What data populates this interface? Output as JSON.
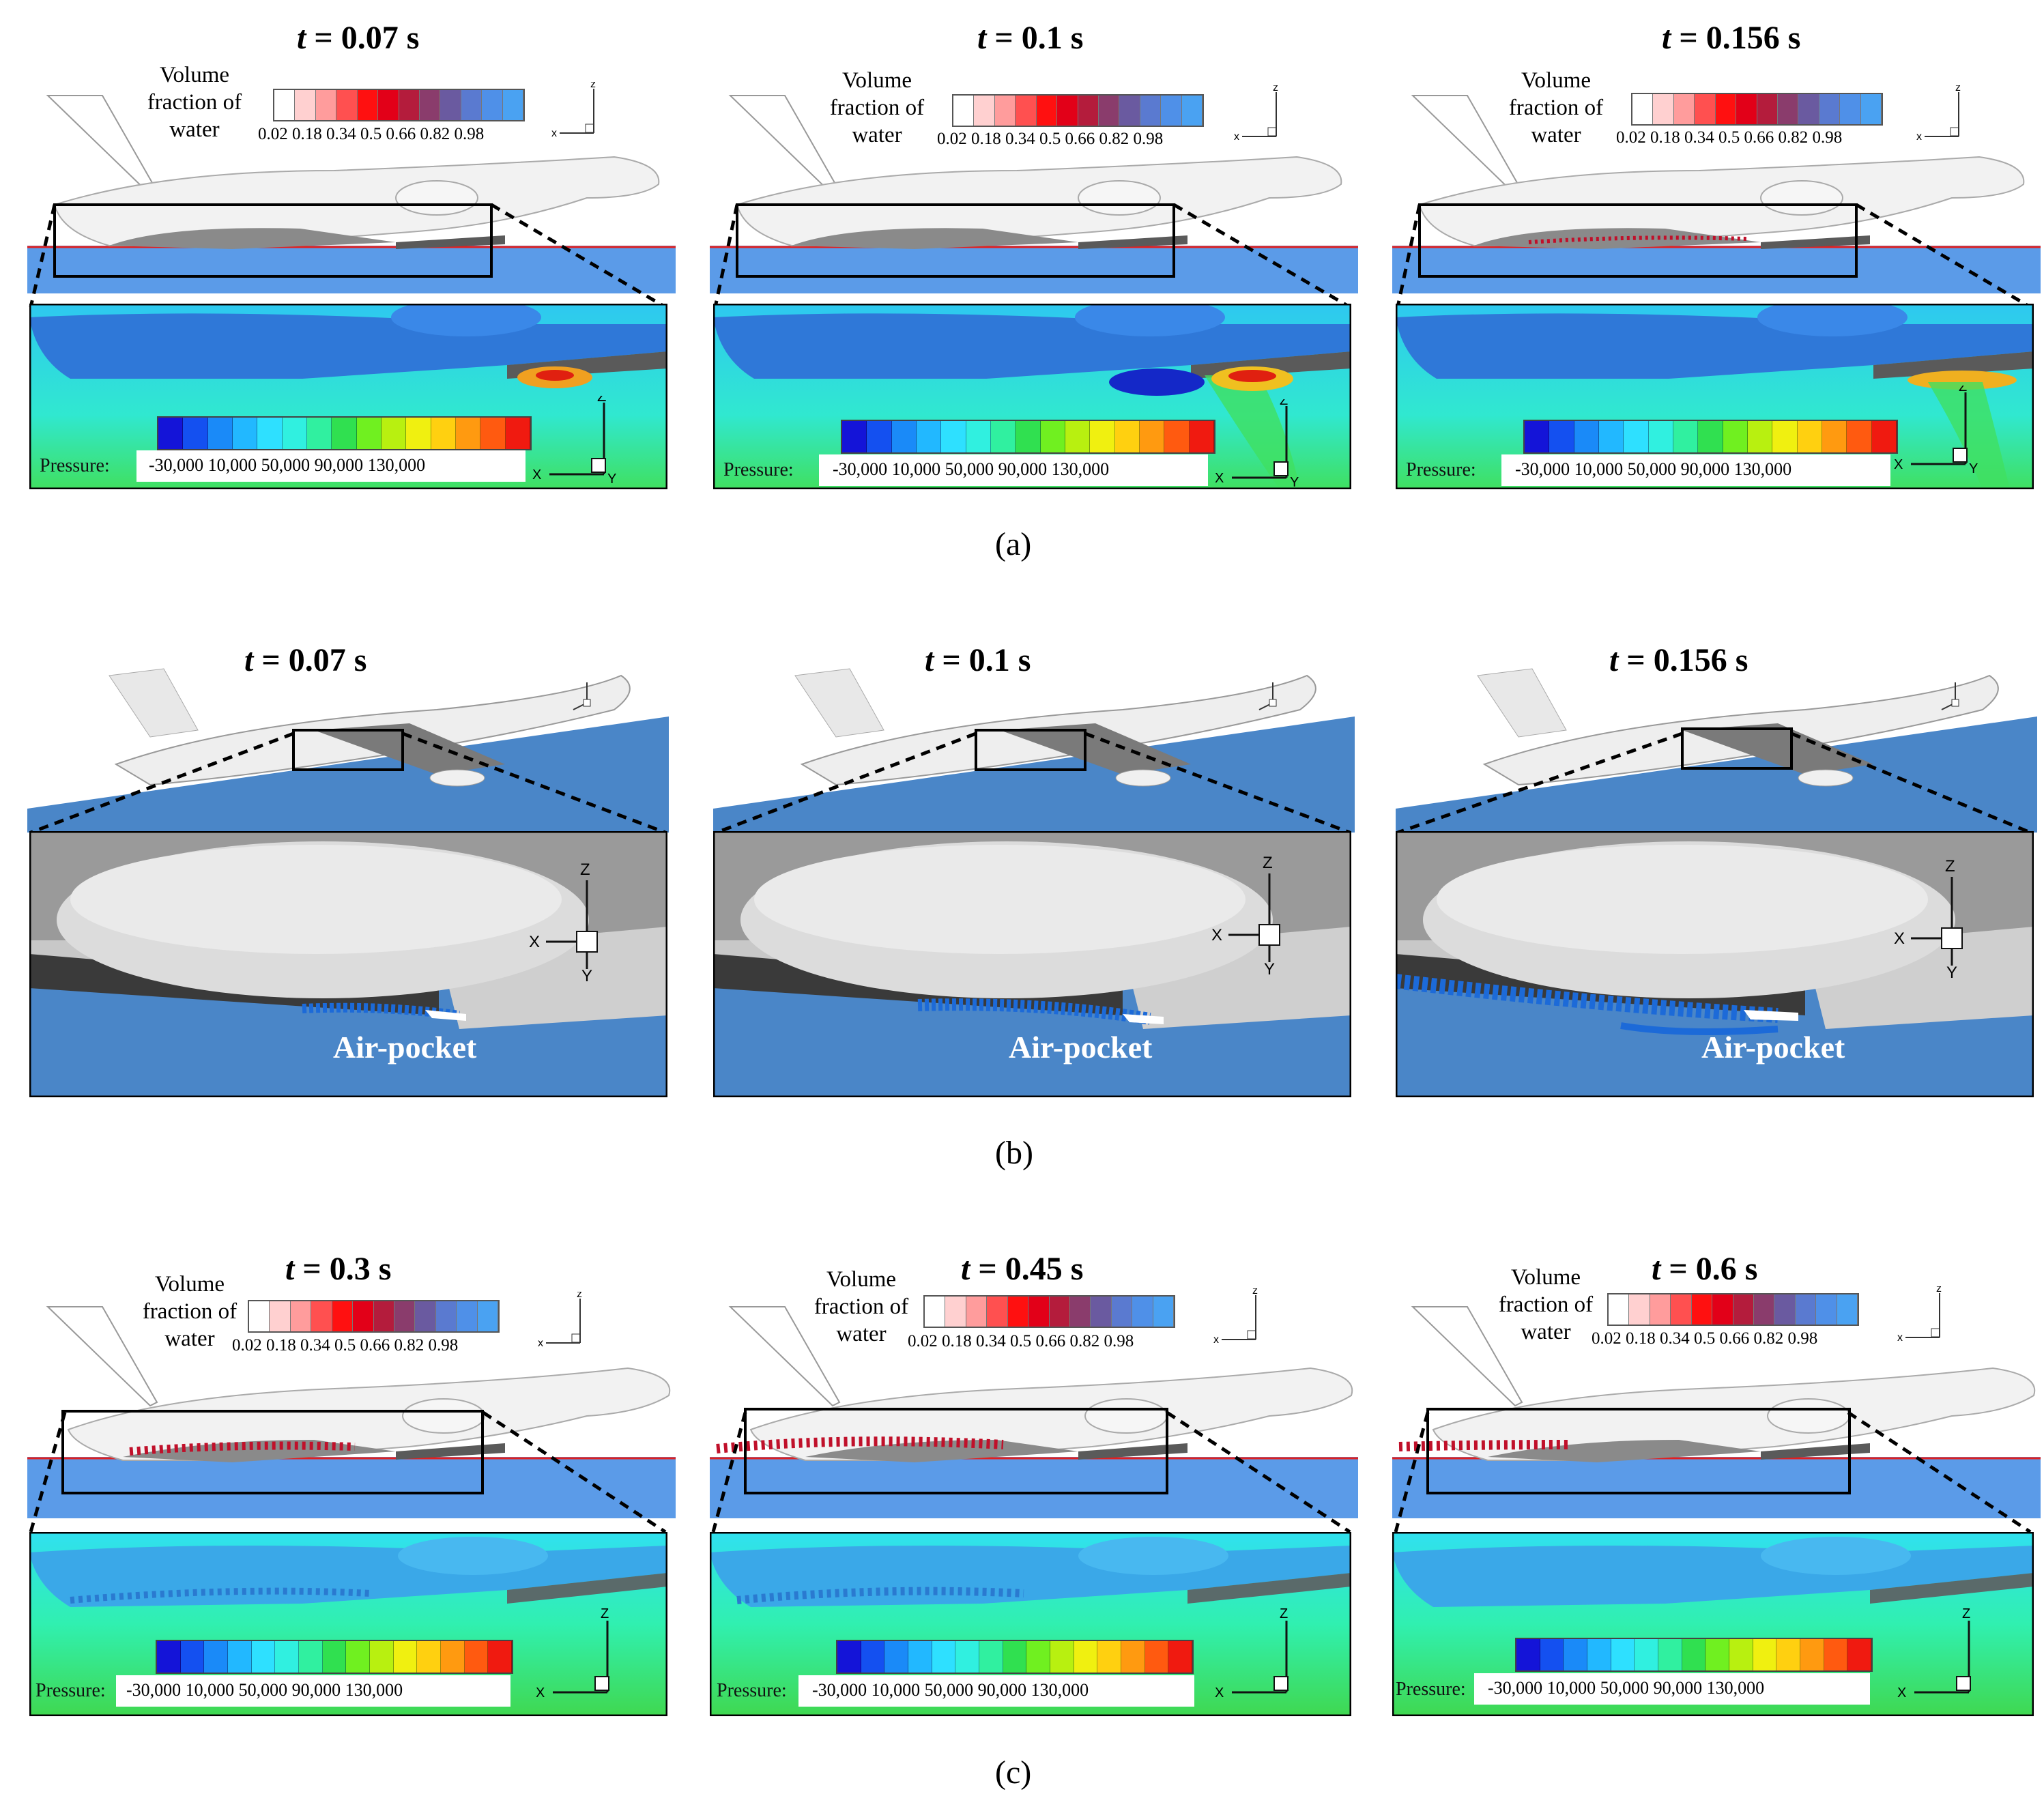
{
  "row_a": {
    "caption": "(a)",
    "panels": [
      {
        "t_var": "t",
        "t_rest": " = 0.07 s"
      },
      {
        "t_var": "t",
        "t_rest": " = 0.1 s"
      },
      {
        "t_var": "t",
        "t_rest": " = 0.156 s"
      }
    ]
  },
  "row_b": {
    "caption": "(b)",
    "panels": [
      {
        "t_var": "t",
        "t_rest": " = 0.07 s"
      },
      {
        "t_var": "t",
        "t_rest": " = 0.1 s"
      },
      {
        "t_var": "t",
        "t_rest": " = 0.156 s"
      }
    ],
    "air_pocket_label": "Air-pocket"
  },
  "row_c": {
    "caption": "(c)",
    "panels": [
      {
        "t_var": "t",
        "t_rest": " = 0.3 s"
      },
      {
        "t_var": "t",
        "t_rest": " = 0.45 s"
      },
      {
        "t_var": "t",
        "t_rest": " = 0.6 s"
      }
    ]
  },
  "volume_fraction_legend": {
    "title_line1": "Volume",
    "title_line2": "fraction of",
    "title_line3": "water",
    "ticks": "0.02 0.18 0.34  0.5  0.66 0.82 0.98",
    "colors": [
      "#ffffff",
      "#ffd0d0",
      "#ff9c9c",
      "#ff5050",
      "#ff1010",
      "#e20018",
      "#b41c3c",
      "#8a3c6c",
      "#6a5aa0",
      "#5a7ad0",
      "#4f90e8",
      "#4aa2f2"
    ]
  },
  "pressure_legend": {
    "label": "Pressure:",
    "ticks": "-30,000   10,000   50,000   90,000   130,000",
    "colors": [
      "#1414d8",
      "#1450f0",
      "#1a8af8",
      "#22b8ff",
      "#2ee0ff",
      "#30f0e0",
      "#30f0a0",
      "#30e050",
      "#70f020",
      "#b8f010",
      "#f0f010",
      "#ffd010",
      "#ff9a10",
      "#ff5a10",
      "#f01a10"
    ]
  },
  "axes": {
    "x": "X",
    "y": "Y",
    "z": "Z"
  },
  "colors": {
    "water": "#5b9be8",
    "water_dark": "#4a86c8",
    "hull": "#f0f0f0",
    "free_surface_line": "#e02020",
    "spray": "#c0102a",
    "spray_blue": "#1c6ad8"
  }
}
